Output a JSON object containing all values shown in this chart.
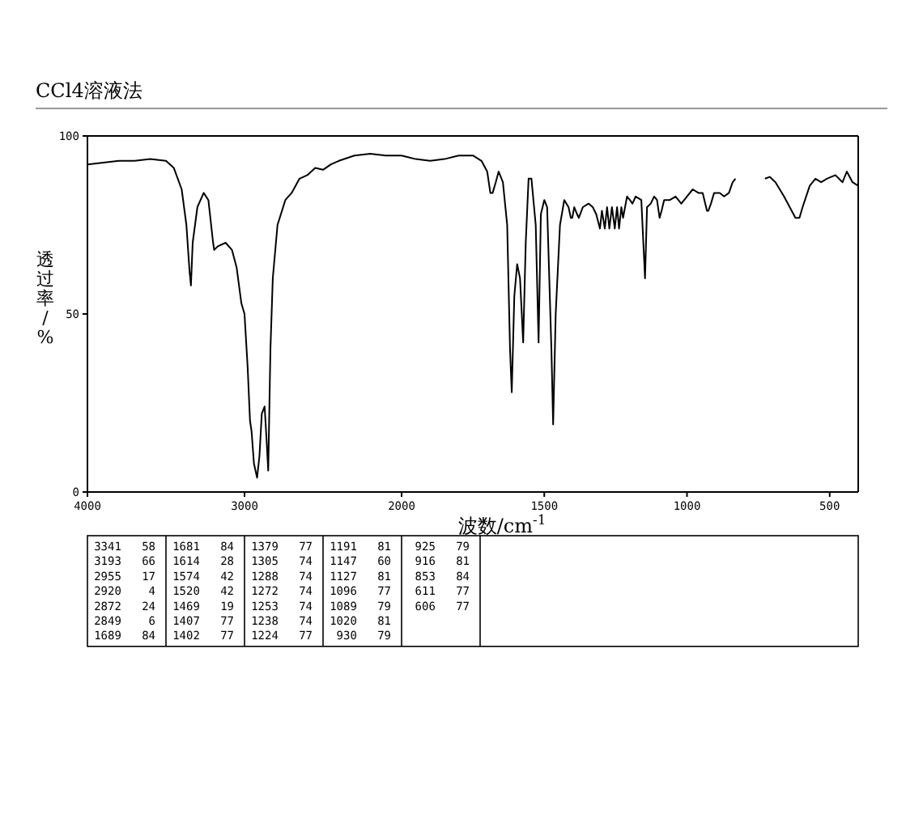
{
  "chart_data": [
    {
      "type": "line",
      "title": "CCl4溶液法",
      "ylabel": "透过率/%",
      "xlim": [
        4000,
        2000
      ],
      "xticks": [
        4000,
        3000,
        2000
      ],
      "ylim": [
        0,
        100
      ],
      "yticks": [
        0,
        50,
        100
      ],
      "series": [
        {
          "color": "#000000",
          "x": [
            4000,
            3800,
            3700,
            3600,
            3500,
            3450,
            3400,
            3370,
            3350,
            3341,
            3330,
            3300,
            3260,
            3230,
            3200,
            3193,
            3170,
            3120,
            3080,
            3050,
            3020,
            3000,
            2980,
            2965,
            2955,
            2940,
            2920,
            2905,
            2890,
            2872,
            2860,
            2849,
            2835,
            2820,
            2790,
            2740,
            2700,
            2650,
            2600,
            2550,
            2500,
            2450,
            2400,
            2300,
            2200,
            2100,
            2000
          ],
          "values": [
            92,
            93,
            93,
            93.5,
            93,
            91,
            85,
            75,
            62,
            58,
            70,
            80,
            84,
            82,
            70,
            68,
            69,
            70,
            68,
            63,
            53,
            50,
            35,
            20,
            17,
            8,
            4,
            10,
            22,
            24,
            15,
            6,
            40,
            60,
            75,
            82,
            84,
            88,
            89,
            91,
            90.5,
            92,
            93,
            94.5,
            95,
            94.5,
            94.5
          ]
        }
      ]
    },
    {
      "type": "line",
      "xlabel": "波数/cm$^{-1}$",
      "xlim": [
        2000,
        400
      ],
      "xticks": [
        1500,
        1000,
        500
      ],
      "ylim": [
        0,
        100
      ],
      "tick_labels": "x",
      "series": [
        {
          "color": "#000000",
          "x": [
            2000,
            1950,
            1900,
            1850,
            1800,
            1750,
            1720,
            1700,
            1689,
            1681,
            1670,
            1660,
            1645,
            1630,
            1620,
            1614,
            1605,
            1595,
            1585,
            1574,
            1565,
            1555,
            1545,
            1530,
            1520,
            1512,
            1500,
            1490,
            1475,
            1469,
            1460,
            1445,
            1430,
            1415,
            1407,
            1402,
            1395,
            1385,
            1379,
            1365,
            1345,
            1330,
            1318,
            1305,
            1298,
            1288,
            1280,
            1272,
            1263,
            1253,
            1245,
            1238,
            1230,
            1224,
            1210,
            1200,
            1191,
            1180,
            1160,
            1147,
            1140,
            1127,
            1115,
            1105,
            1096,
            1089,
            1080,
            1060,
            1040,
            1020,
            1000,
            980,
            960,
            945,
            930,
            925,
            916,
            905,
            885,
            870,
            853,
            840,
            830,
            780,
            727,
            710,
            690,
            660,
            640,
            620,
            611,
            606,
            595,
            570,
            550,
            530,
            510,
            480,
            455,
            440,
            420,
            400
          ],
          "values": [
            94.5,
            93.5,
            93,
            93.5,
            94.5,
            94.5,
            93,
            90,
            84,
            84,
            87,
            90,
            87,
            75,
            40,
            28,
            55,
            64,
            60,
            42,
            70,
            88,
            88,
            75,
            42,
            78,
            82,
            80,
            40,
            19,
            50,
            75,
            82,
            80,
            77,
            77,
            80,
            78,
            77,
            80,
            81,
            80,
            78,
            74,
            79,
            74,
            80,
            74,
            80,
            74,
            80,
            74,
            80,
            77,
            83,
            82,
            81,
            83,
            82,
            60,
            80,
            81,
            83,
            82,
            77,
            79,
            82,
            82,
            83,
            81,
            83,
            85,
            84,
            84,
            79,
            79,
            81,
            84,
            84,
            83,
            84,
            87,
            88,
            null,
            88,
            88.5,
            87,
            83,
            80,
            77,
            77,
            77,
            80,
            86,
            88,
            87,
            88,
            89,
            87,
            90,
            87,
            86
          ]
        }
      ]
    },
    {
      "type": "other",
      "annotations": [
        "3341 58",
        "3193 66",
        "2955 17",
        "2920 4",
        "2872 24",
        "2849 6",
        "1689 84",
        "1681 84",
        "1614 28",
        "1574 42",
        "1520 42",
        "1469 19",
        "1407 77",
        "1402 77",
        "1379 77",
        "1305 74",
        "1288 74",
        "1272 74",
        "1253 74",
        "1238 74",
        "1224 77",
        "1191 81",
        "1147 60",
        "1127 81",
        "1096 77",
        "1089 79",
        "1020 81",
        "930 79",
        "925 79",
        "916 81",
        "853 84",
        "611 77",
        "606 77"
      ]
    }
  ]
}
